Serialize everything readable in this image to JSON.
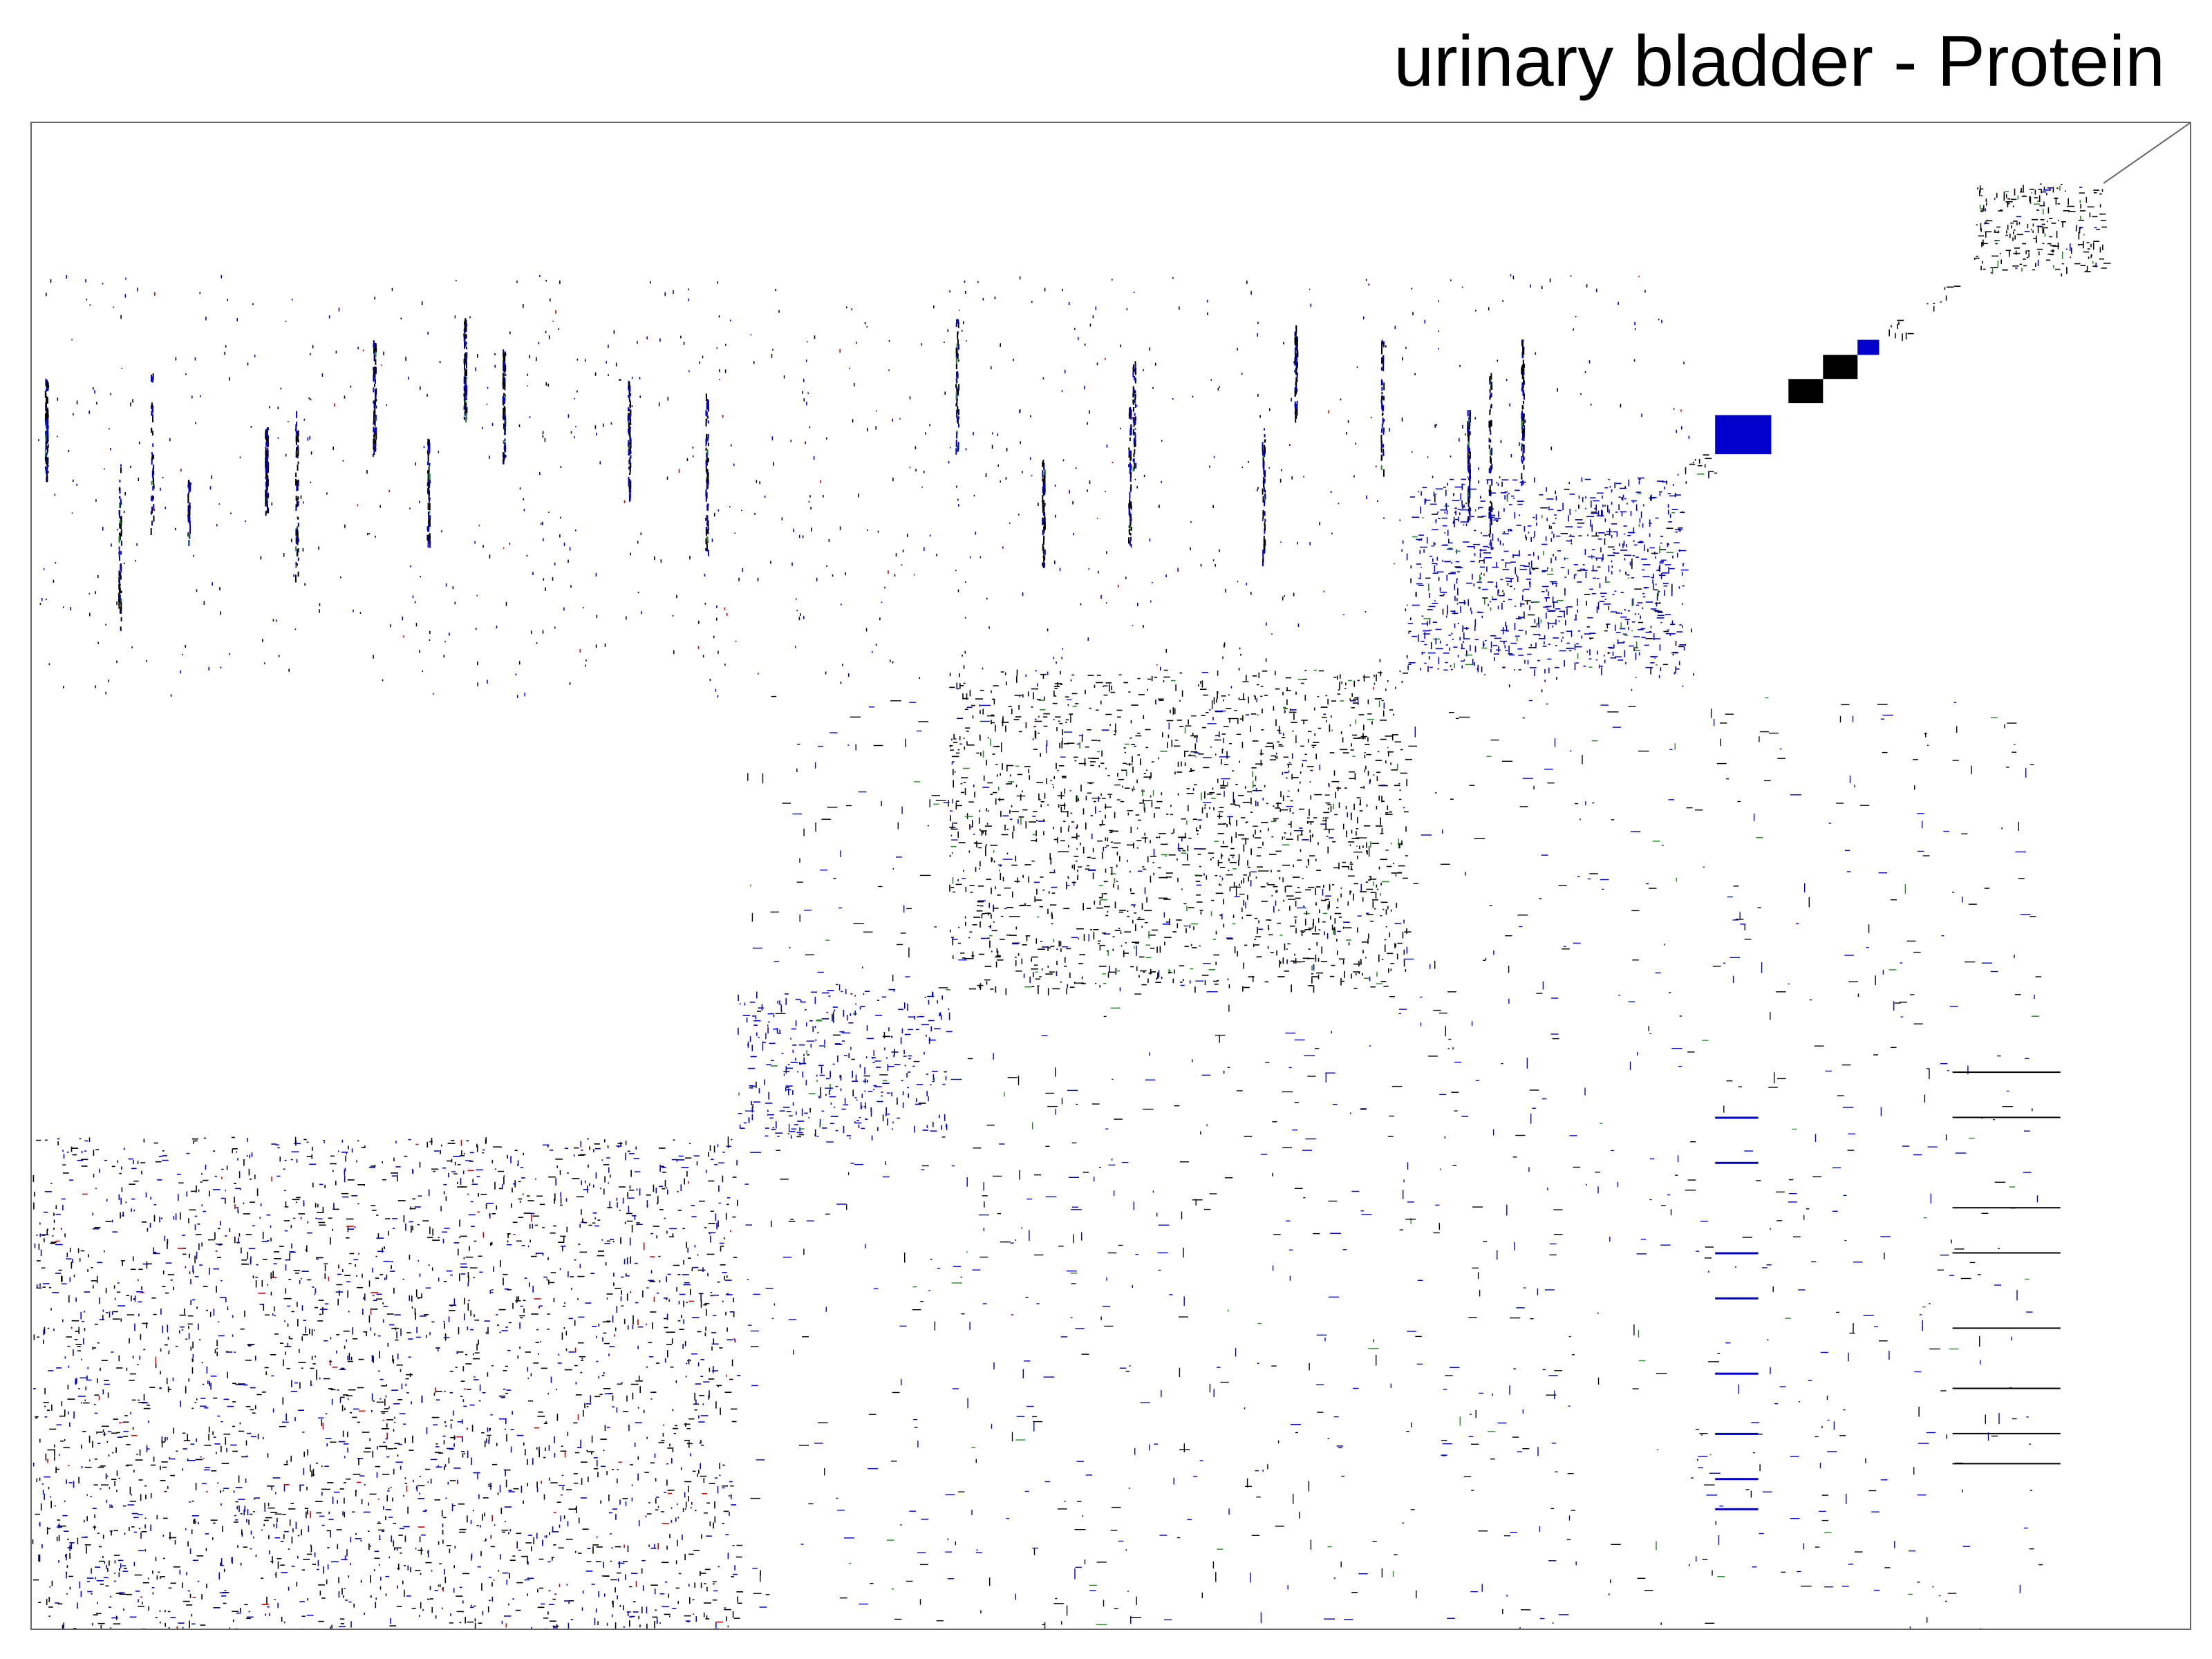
{
  "chart_data": {
    "type": "heatmap",
    "title": "urinary bladder - Protein",
    "xlabel": "",
    "ylabel": "",
    "grid": false,
    "legend": "none",
    "colors": {
      "background": "#ffffff",
      "frame": "#666666",
      "mark_black": "#000000",
      "mark_blue": "#0000cc",
      "mark_green": "#228b22",
      "mark_red": "#cc0000"
    },
    "clusters": [
      {
        "id": 1,
        "start": 0.0,
        "end": 0.327,
        "color": "mixed",
        "density": 0.22
      },
      {
        "id": 2,
        "start": 0.327,
        "end": 0.425,
        "color": "blue",
        "density": 0.3
      },
      {
        "id": 3,
        "start": 0.425,
        "end": 0.637,
        "color": "black",
        "density": 0.3
      },
      {
        "id": 4,
        "start": 0.637,
        "end": 0.765,
        "color": "blue",
        "density": 0.45
      },
      {
        "id": 5,
        "start": 0.765,
        "end": 0.78,
        "color": "black",
        "density": 0.5
      },
      {
        "id": 6,
        "start": 0.78,
        "end": 0.806,
        "color": "blue",
        "density": 0.95
      },
      {
        "id": 7,
        "start": 0.814,
        "end": 0.83,
        "color": "black",
        "density": 1.0
      },
      {
        "id": 8,
        "start": 0.83,
        "end": 0.846,
        "color": "black",
        "density": 1.0
      },
      {
        "id": 9,
        "start": 0.846,
        "end": 0.856,
        "color": "blue",
        "density": 0.9
      },
      {
        "id": 10,
        "start": 0.86,
        "end": 0.87,
        "color": "black",
        "density": 0.7
      },
      {
        "id": 11,
        "start": 0.878,
        "end": 0.885,
        "color": "black",
        "density": 0.7
      },
      {
        "id": 12,
        "start": 0.885,
        "end": 0.892,
        "color": "black",
        "density": 0.6
      },
      {
        "id": 13,
        "start": 0.9,
        "end": 0.96,
        "color": "black",
        "density": 0.55
      }
    ]
  }
}
